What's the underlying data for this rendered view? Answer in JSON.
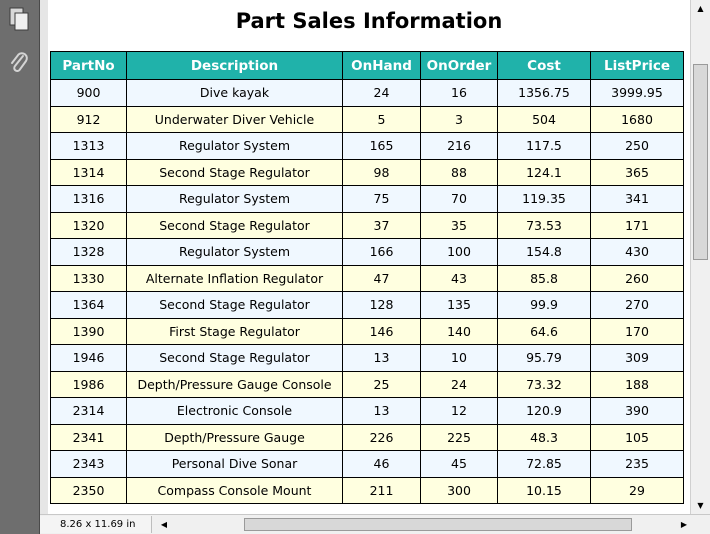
{
  "title": "Part Sales Information",
  "page_size": "8.26 x 11.69 in",
  "icons": {
    "pages": "pages-icon",
    "attachments": "paperclip-icon",
    "scroll_up": "▲",
    "scroll_down": "▼",
    "scroll_left": "◀",
    "scroll_right": "▶"
  },
  "colors": {
    "header_bg": "#20b2aa",
    "row_odd": "#f0f8ff",
    "row_even": "#ffffe0"
  },
  "table": {
    "columns": [
      "PartNo",
      "Description",
      "OnHand",
      "OnOrder",
      "Cost",
      "ListPrice"
    ],
    "rows": [
      [
        "900",
        "Dive kayak",
        "24",
        "16",
        "1356.75",
        "3999.95"
      ],
      [
        "912",
        "Underwater Diver Vehicle",
        "5",
        "3",
        "504",
        "1680"
      ],
      [
        "1313",
        "Regulator System",
        "165",
        "216",
        "117.5",
        "250"
      ],
      [
        "1314",
        "Second Stage Regulator",
        "98",
        "88",
        "124.1",
        "365"
      ],
      [
        "1316",
        "Regulator System",
        "75",
        "70",
        "119.35",
        "341"
      ],
      [
        "1320",
        "Second Stage Regulator",
        "37",
        "35",
        "73.53",
        "171"
      ],
      [
        "1328",
        "Regulator System",
        "166",
        "100",
        "154.8",
        "430"
      ],
      [
        "1330",
        "Alternate Inflation Regulator",
        "47",
        "43",
        "85.8",
        "260"
      ],
      [
        "1364",
        "Second Stage Regulator",
        "128",
        "135",
        "99.9",
        "270"
      ],
      [
        "1390",
        "First Stage Regulator",
        "146",
        "140",
        "64.6",
        "170"
      ],
      [
        "1946",
        "Second Stage Regulator",
        "13",
        "10",
        "95.79",
        "309"
      ],
      [
        "1986",
        "Depth/Pressure Gauge Console",
        "25",
        "24",
        "73.32",
        "188"
      ],
      [
        "2314",
        "Electronic Console",
        "13",
        "12",
        "120.9",
        "390"
      ],
      [
        "2341",
        "Depth/Pressure Gauge",
        "226",
        "225",
        "48.3",
        "105"
      ],
      [
        "2343",
        "Personal Dive Sonar",
        "46",
        "45",
        "72.85",
        "235"
      ],
      [
        "2350",
        "Compass Console Mount",
        "211",
        "300",
        "10.15",
        "29"
      ]
    ]
  }
}
